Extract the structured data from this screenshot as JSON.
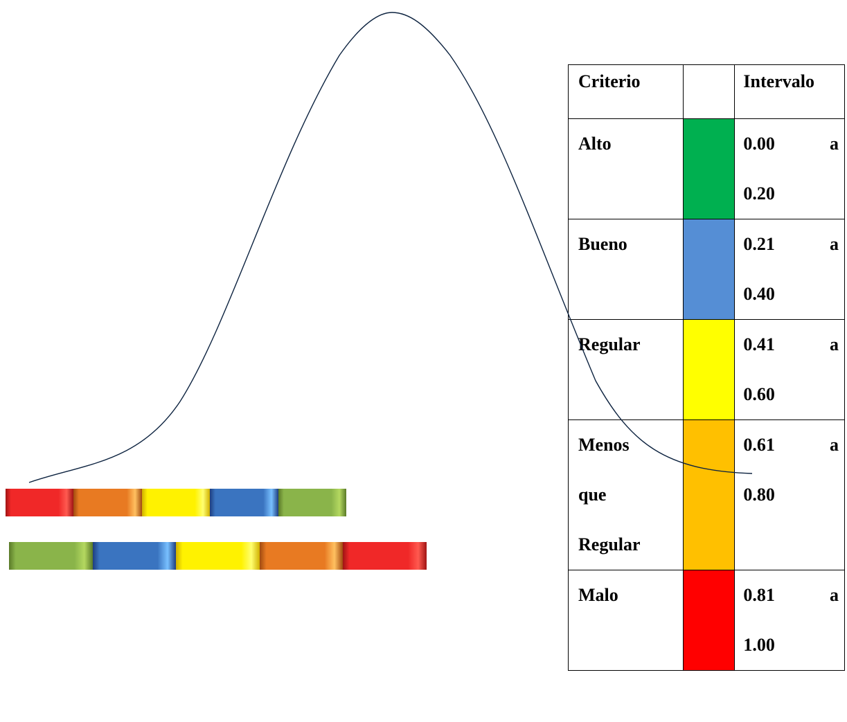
{
  "table": {
    "headers": {
      "criterio": "Criterio",
      "color": "",
      "intervalo": "Intervalo"
    },
    "rows": [
      {
        "criterio": [
          "Alto"
        ],
        "color": "#00b050",
        "from": "0.00",
        "sep": "a",
        "to": "0.20"
      },
      {
        "criterio": [
          "Bueno"
        ],
        "color": "#558ed5",
        "from": "0.21",
        "sep": "a",
        "to": "0.40"
      },
      {
        "criterio": [
          "Regular"
        ],
        "color": "#ffff00",
        "from": "0.41",
        "sep": "a",
        "to": "0.60"
      },
      {
        "criterio": [
          "Menos",
          "que",
          "Regular"
        ],
        "color": "#ffc000",
        "from": "0.61",
        "sep": "a",
        "to": "0.80"
      },
      {
        "criterio": [
          "Malo"
        ],
        "color": "#ff0000",
        "from": "0.81",
        "sep": "a",
        "to": "1.00"
      }
    ]
  },
  "scales": {
    "top": [
      {
        "name": "red",
        "base": "#f02828",
        "light": "#ff5a50",
        "dark": "#a01414"
      },
      {
        "name": "orange",
        "base": "#e87a22",
        "light": "#ffc060",
        "dark": "#a04a10"
      },
      {
        "name": "yellow",
        "base": "#fff200",
        "light": "#ffff70",
        "dark": "#d0b000"
      },
      {
        "name": "blue",
        "base": "#3a74c0",
        "light": "#78c0ff",
        "dark": "#1e3e80"
      },
      {
        "name": "green",
        "base": "#8ab44a",
        "light": "#b4d860",
        "dark": "#5a7a28"
      }
    ],
    "bottom": [
      {
        "name": "green",
        "base": "#8ab44a",
        "light": "#b4d860",
        "dark": "#5a7a28"
      },
      {
        "name": "blue",
        "base": "#3a74c0",
        "light": "#78c0ff",
        "dark": "#1e3e80"
      },
      {
        "name": "yellow",
        "base": "#fff200",
        "light": "#ffff70",
        "dark": "#d0b000"
      },
      {
        "name": "orange",
        "base": "#e87a22",
        "light": "#ffc060",
        "dark": "#a04a10"
      },
      {
        "name": "red",
        "base": "#f02828",
        "light": "#ff5a50",
        "dark": "#a01414"
      }
    ]
  },
  "curve": {
    "stroke": "#0d2340"
  }
}
